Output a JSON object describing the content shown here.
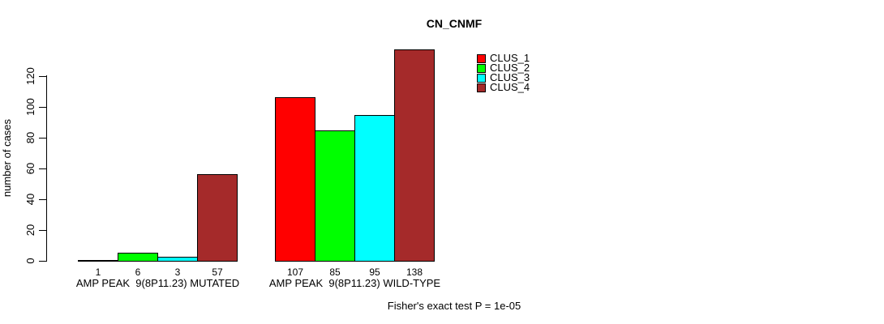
{
  "background_color": "#ffffff",
  "chart_data": {
    "type": "bar",
    "title": "CN_CNMF",
    "ylabel": "number of cases",
    "xlabel": "",
    "yticks": [
      0,
      20,
      40,
      60,
      80,
      100,
      120
    ],
    "ylim": [
      0,
      140
    ],
    "grid": false,
    "legend_position": "top-right",
    "categories": [
      "AMP PEAK  9(8P11.23) MUTATED",
      "AMP PEAK  9(8P11.23) WILD-TYPE"
    ],
    "series": [
      {
        "name": "CLUS_1",
        "color": "#FF0000",
        "values": [
          1,
          107
        ]
      },
      {
        "name": "CLUS_2",
        "color": "#00FF00",
        "values": [
          6,
          85
        ]
      },
      {
        "name": "CLUS_3",
        "color": "#00FFFF",
        "values": [
          3,
          95
        ]
      },
      {
        "name": "CLUS_4",
        "color": "#A52A2A",
        "values": [
          57,
          138
        ]
      }
    ],
    "bar_value_labels": [
      [
        1,
        6,
        3,
        57
      ],
      [
        107,
        85,
        95,
        138
      ]
    ],
    "annotation": "Fisher's exact test P = 1e-05",
    "axis_color": "#000000",
    "bar_border_color": "#000000"
  }
}
